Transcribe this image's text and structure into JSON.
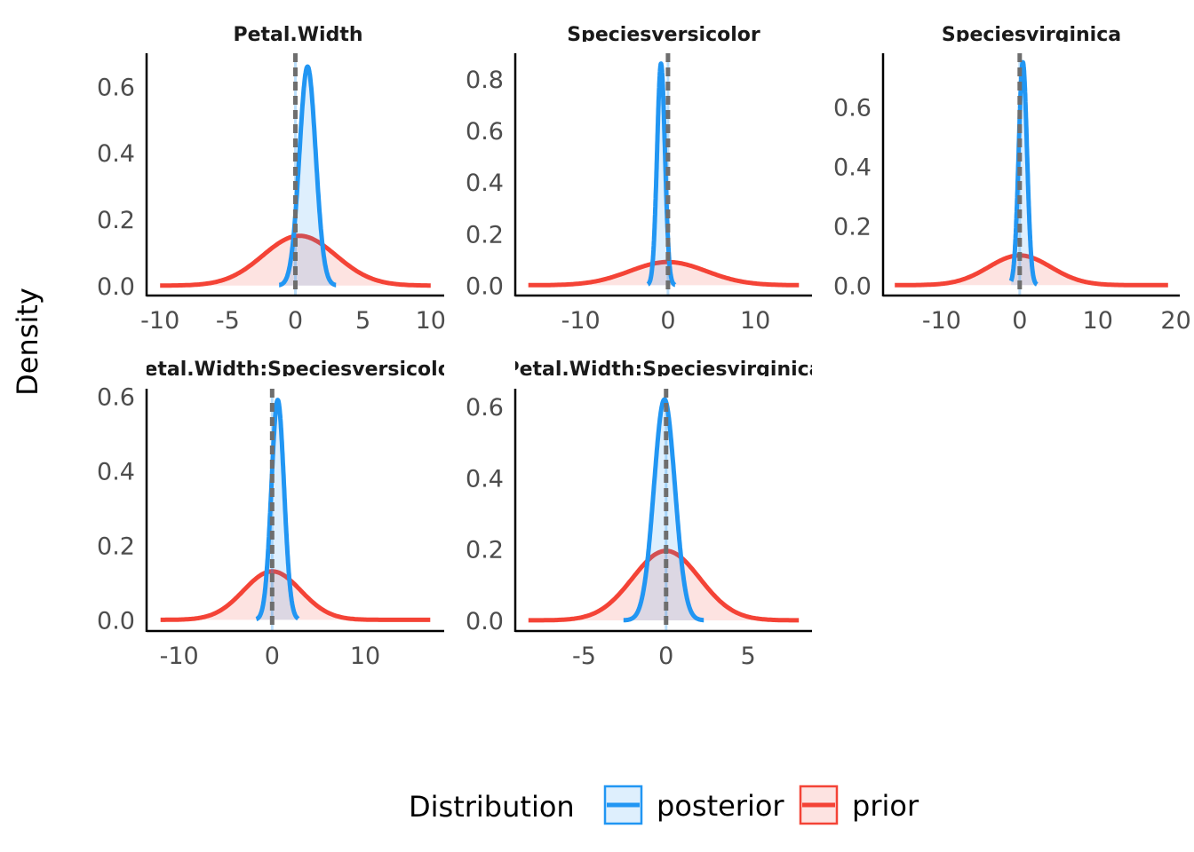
{
  "chart_data": {
    "type": "area",
    "ylabel": "Density",
    "xlabel": "",
    "legend": {
      "title": "Distribution",
      "position": "bottom",
      "entries": [
        "posterior",
        "prior"
      ]
    },
    "colors": {
      "posterior": "#2196F3",
      "prior": "#F44336",
      "reference_line": "#6e6e6e"
    },
    "reference_line_x": 0,
    "panels": [
      {
        "title": "Petal.Width",
        "xlim": [
          -11,
          11
        ],
        "ylim": [
          -0.03,
          0.7
        ],
        "xticks": [
          "-10",
          "-5",
          "0",
          "5",
          "10"
        ],
        "xtick_values": [
          -10,
          -5,
          0,
          5,
          10
        ],
        "yticks": [
          "0.0",
          "0.2",
          "0.4",
          "0.6"
        ],
        "ytick_values": [
          0,
          0.2,
          0.4,
          0.6
        ],
        "posterior": {
          "mean": 0.9,
          "sd": 0.6,
          "peak": 0.66,
          "range": [
            -1.2,
            3.0
          ]
        },
        "prior": {
          "mean": 0.3,
          "sd": 2.7,
          "peak": 0.15,
          "range": [
            -10,
            10
          ]
        }
      },
      {
        "title": "Speciesversicolor",
        "xlim": [
          -17.5,
          16.5
        ],
        "ylim": [
          -0.04,
          0.9
        ],
        "xticks": [
          "-10",
          "0",
          "10"
        ],
        "xtick_values": [
          -10,
          0,
          10
        ],
        "yticks": [
          "0.0",
          "0.2",
          "0.4",
          "0.6",
          "0.8"
        ],
        "ytick_values": [
          0,
          0.2,
          0.4,
          0.6,
          0.8
        ],
        "posterior": {
          "mean": -0.8,
          "sd": 0.45,
          "peak": 0.86,
          "range": [
            -2.3,
            0.8
          ]
        },
        "prior": {
          "mean": 0,
          "sd": 4.4,
          "peak": 0.09,
          "range": [
            -16,
            15
          ]
        }
      },
      {
        "title": "Speciesvirginica",
        "xlim": [
          -17.5,
          20.5
        ],
        "ylim": [
          -0.035,
          0.78
        ],
        "xticks": [
          "-10",
          "0",
          "10",
          "20"
        ],
        "xtick_values": [
          -10,
          0,
          10,
          20
        ],
        "yticks": [
          "0.0",
          "0.2",
          "0.4",
          "0.6"
        ],
        "ytick_values": [
          0,
          0.2,
          0.4,
          0.6
        ],
        "posterior": {
          "mean": 0.4,
          "sd": 0.53,
          "peak": 0.75,
          "range": [
            -1.1,
            2.2
          ]
        },
        "prior": {
          "mean": 0,
          "sd": 4.0,
          "peak": 0.1,
          "range": [
            -16,
            19
          ]
        }
      },
      {
        "title": "Petal.Width:Speciesversicolor",
        "xlim": [
          -13.5,
          18.5
        ],
        "ylim": [
          -0.03,
          0.62
        ],
        "xticks": [
          "-10",
          "0",
          "10"
        ],
        "xtick_values": [
          -10,
          0,
          10
        ],
        "yticks": [
          "0.0",
          "0.2",
          "0.4",
          "0.6"
        ],
        "ytick_values": [
          0,
          0.2,
          0.4,
          0.6
        ],
        "posterior": {
          "mean": 0.6,
          "sd": 0.68,
          "peak": 0.59,
          "range": [
            -1.7,
            2.8
          ]
        },
        "prior": {
          "mean": 0,
          "sd": 3.07,
          "peak": 0.13,
          "range": [
            -12,
            17
          ]
        }
      },
      {
        "title": "Petal.Width:Speciesvirginica",
        "xlim": [
          -9.2,
          8.9
        ],
        "ylim": [
          -0.03,
          0.65
        ],
        "xticks": [
          "-5",
          "0",
          "5"
        ],
        "xtick_values": [
          -5,
          0,
          5
        ],
        "yticks": [
          "0.0",
          "0.2",
          "0.4",
          "0.6"
        ],
        "ytick_values": [
          0,
          0.2,
          0.4,
          0.6
        ],
        "posterior": {
          "mean": -0.1,
          "sd": 0.64,
          "peak": 0.62,
          "range": [
            -2.6,
            2.3
          ]
        },
        "prior": {
          "mean": 0,
          "sd": 2.05,
          "peak": 0.195,
          "range": [
            -8.4,
            8.1
          ]
        }
      }
    ]
  }
}
